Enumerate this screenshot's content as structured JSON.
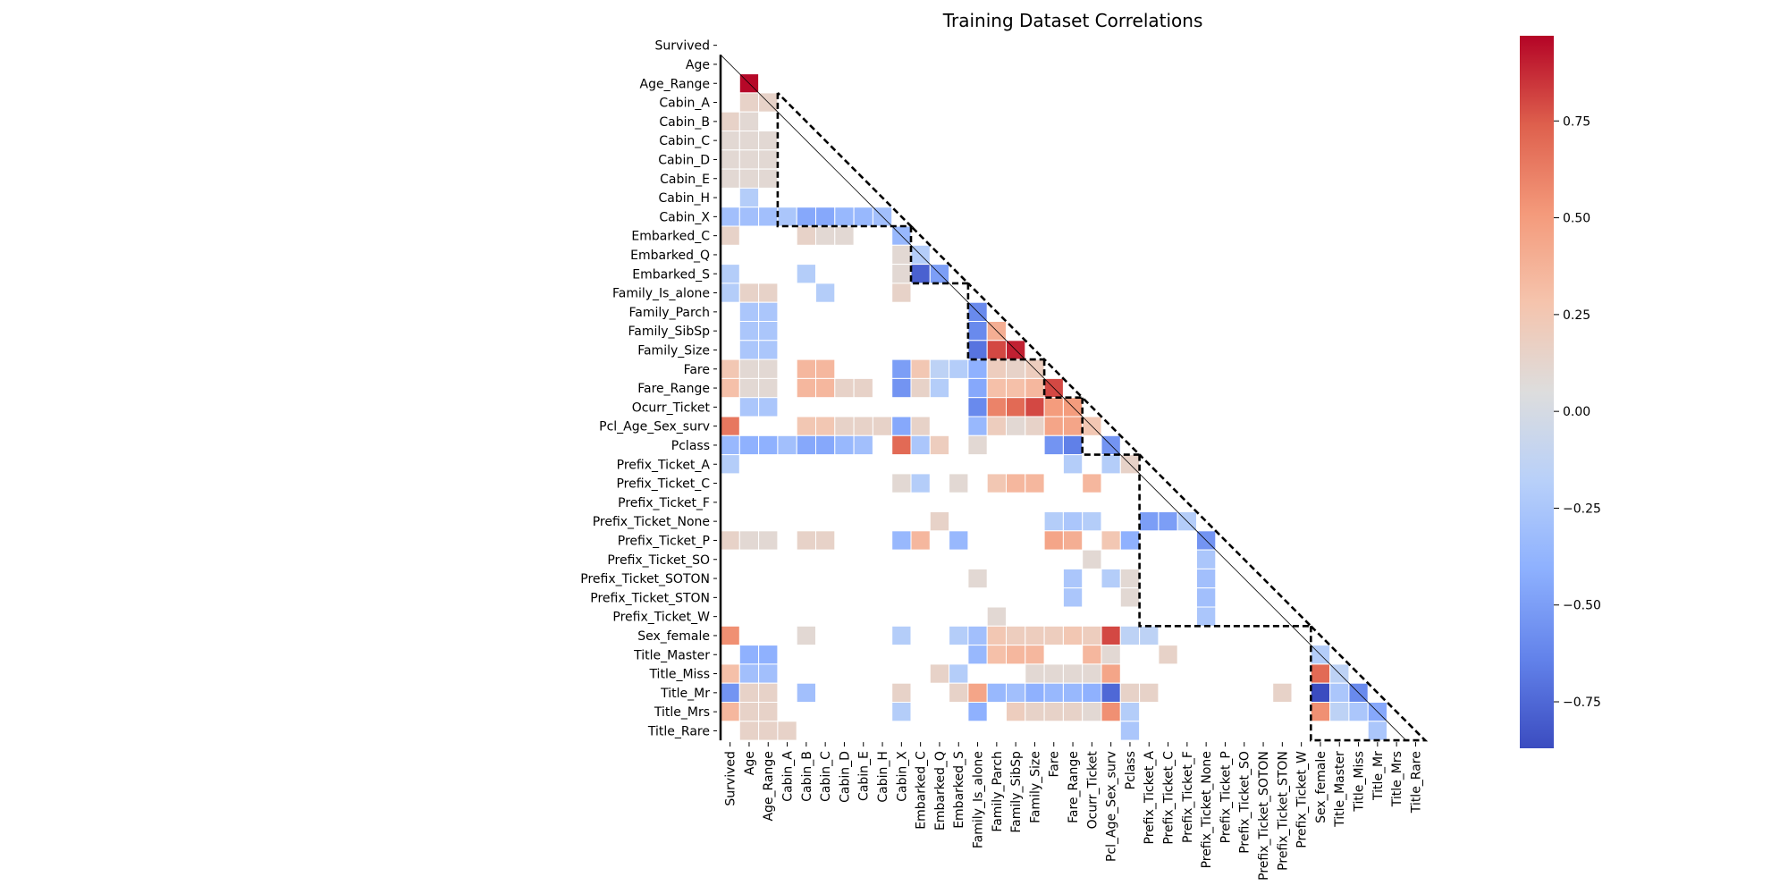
{
  "chart_data": {
    "type": "heatmap",
    "title": "Training Dataset Correlations",
    "xlabel": "",
    "ylabel": "",
    "mask": "upper triangle incl. diagonal; cells with |r| below threshold blank",
    "variables": [
      "Survived",
      "Age",
      "Age_Range",
      "Cabin_A",
      "Cabin_B",
      "Cabin_C",
      "Cabin_D",
      "Cabin_E",
      "Cabin_H",
      "Cabin_X",
      "Embarked_C",
      "Embarked_Q",
      "Embarked_S",
      "Family_Is_alone",
      "Family_Parch",
      "Family_SibSp",
      "Family_Size",
      "Fare",
      "Fare_Range",
      "Ocurr_Ticket",
      "Pcl_Age_Sex_surv",
      "Pclass",
      "Prefix_Ticket_A",
      "Prefix_Ticket_C",
      "Prefix_Ticket_F",
      "Prefix_Ticket_None",
      "Prefix_Ticket_P",
      "Prefix_Ticket_SO",
      "Prefix_Ticket_SOTON",
      "Prefix_Ticket_STON",
      "Prefix_Ticket_W",
      "Sex_female",
      "Title_Master",
      "Title_Miss",
      "Title_Mr",
      "Title_Mrs",
      "Title_Rare"
    ],
    "cells": [
      [
        2,
        1,
        0.96
      ],
      [
        3,
        1,
        0.15
      ],
      [
        3,
        2,
        0.15
      ],
      [
        4,
        0,
        0.15
      ],
      [
        4,
        1,
        0.1
      ],
      [
        5,
        0,
        0.1
      ],
      [
        5,
        1,
        0.1
      ],
      [
        5,
        2,
        0.1
      ],
      [
        6,
        0,
        0.1
      ],
      [
        6,
        1,
        0.1
      ],
      [
        6,
        2,
        0.1
      ],
      [
        7,
        0,
        0.1
      ],
      [
        7,
        1,
        0.1
      ],
      [
        7,
        2,
        0.1
      ],
      [
        8,
        1,
        -0.2
      ],
      [
        9,
        0,
        -0.3
      ],
      [
        9,
        1,
        -0.3
      ],
      [
        9,
        2,
        -0.3
      ],
      [
        9,
        3,
        -0.25
      ],
      [
        9,
        4,
        -0.45
      ],
      [
        9,
        5,
        -0.45
      ],
      [
        9,
        6,
        -0.35
      ],
      [
        9,
        7,
        -0.35
      ],
      [
        9,
        8,
        -0.3
      ],
      [
        10,
        0,
        0.15
      ],
      [
        10,
        4,
        0.15
      ],
      [
        10,
        5,
        0.1
      ],
      [
        10,
        6,
        0.1
      ],
      [
        10,
        9,
        -0.35
      ],
      [
        11,
        9,
        0.1
      ],
      [
        11,
        10,
        -0.2
      ],
      [
        12,
        0,
        -0.2
      ],
      [
        12,
        4,
        -0.2
      ],
      [
        12,
        9,
        0.1
      ],
      [
        12,
        10,
        -0.78
      ],
      [
        12,
        11,
        -0.5
      ],
      [
        13,
        0,
        -0.2
      ],
      [
        13,
        1,
        0.15
      ],
      [
        13,
        2,
        0.15
      ],
      [
        13,
        5,
        -0.2
      ],
      [
        13,
        9,
        0.15
      ],
      [
        14,
        1,
        -0.25
      ],
      [
        14,
        2,
        -0.25
      ],
      [
        14,
        13,
        -0.6
      ],
      [
        15,
        1,
        -0.25
      ],
      [
        15,
        2,
        -0.25
      ],
      [
        15,
        13,
        -0.6
      ],
      [
        15,
        14,
        0.4
      ],
      [
        16,
        1,
        -0.25
      ],
      [
        16,
        2,
        -0.25
      ],
      [
        16,
        13,
        -0.7
      ],
      [
        16,
        14,
        0.8
      ],
      [
        16,
        15,
        0.9
      ],
      [
        17,
        0,
        0.25
      ],
      [
        17,
        1,
        0.1
      ],
      [
        17,
        2,
        0.1
      ],
      [
        17,
        4,
        0.35
      ],
      [
        17,
        5,
        0.35
      ],
      [
        17,
        9,
        -0.5
      ],
      [
        17,
        10,
        0.25
      ],
      [
        17,
        11,
        -0.15
      ],
      [
        17,
        12,
        -0.2
      ],
      [
        17,
        13,
        -0.4
      ],
      [
        17,
        14,
        0.2
      ],
      [
        17,
        15,
        0.15
      ],
      [
        17,
        16,
        0.2
      ],
      [
        18,
        0,
        0.3
      ],
      [
        18,
        1,
        0.1
      ],
      [
        18,
        2,
        0.1
      ],
      [
        18,
        4,
        0.35
      ],
      [
        18,
        5,
        0.35
      ],
      [
        18,
        6,
        0.15
      ],
      [
        18,
        7,
        0.15
      ],
      [
        18,
        9,
        -0.55
      ],
      [
        18,
        10,
        0.15
      ],
      [
        18,
        11,
        -0.2
      ],
      [
        18,
        13,
        -0.45
      ],
      [
        18,
        14,
        0.3
      ],
      [
        18,
        15,
        0.3
      ],
      [
        18,
        16,
        0.35
      ],
      [
        18,
        17,
        0.8
      ],
      [
        19,
        1,
        -0.25
      ],
      [
        19,
        2,
        -0.25
      ],
      [
        19,
        13,
        -0.6
      ],
      [
        19,
        14,
        0.6
      ],
      [
        19,
        15,
        0.7
      ],
      [
        19,
        16,
        0.8
      ],
      [
        19,
        17,
        0.5
      ],
      [
        19,
        18,
        0.5
      ],
      [
        20,
        0,
        0.65
      ],
      [
        20,
        4,
        0.25
      ],
      [
        20,
        5,
        0.25
      ],
      [
        20,
        6,
        0.15
      ],
      [
        20,
        7,
        0.15
      ],
      [
        20,
        8,
        0.15
      ],
      [
        20,
        9,
        -0.45
      ],
      [
        20,
        10,
        0.15
      ],
      [
        20,
        13,
        -0.35
      ],
      [
        20,
        14,
        0.2
      ],
      [
        20,
        15,
        0.1
      ],
      [
        20,
        16,
        0.15
      ],
      [
        20,
        17,
        0.45
      ],
      [
        20,
        18,
        0.45
      ],
      [
        20,
        19,
        0.25
      ],
      [
        21,
        0,
        -0.35
      ],
      [
        21,
        1,
        -0.4
      ],
      [
        21,
        2,
        -0.4
      ],
      [
        21,
        3,
        -0.3
      ],
      [
        21,
        4,
        -0.45
      ],
      [
        21,
        5,
        -0.45
      ],
      [
        21,
        6,
        -0.35
      ],
      [
        21,
        7,
        -0.3
      ],
      [
        21,
        9,
        0.7
      ],
      [
        21,
        10,
        -0.25
      ],
      [
        21,
        11,
        0.2
      ],
      [
        21,
        13,
        0.1
      ],
      [
        21,
        17,
        -0.55
      ],
      [
        21,
        18,
        -0.65
      ],
      [
        21,
        20,
        -0.55
      ],
      [
        22,
        0,
        -0.2
      ],
      [
        22,
        18,
        -0.2
      ],
      [
        22,
        20,
        -0.2
      ],
      [
        22,
        21,
        0.15
      ],
      [
        23,
        9,
        0.1
      ],
      [
        23,
        10,
        -0.2
      ],
      [
        23,
        12,
        0.1
      ],
      [
        23,
        14,
        0.25
      ],
      [
        23,
        15,
        0.35
      ],
      [
        23,
        16,
        0.35
      ],
      [
        23,
        19,
        0.35
      ],
      [
        25,
        11,
        0.15
      ],
      [
        25,
        17,
        -0.2
      ],
      [
        25,
        18,
        -0.25
      ],
      [
        25,
        19,
        -0.2
      ],
      [
        25,
        22,
        -0.5
      ],
      [
        25,
        23,
        -0.5
      ],
      [
        25,
        24,
        -0.2
      ],
      [
        26,
        0,
        0.15
      ],
      [
        26,
        1,
        0.1
      ],
      [
        26,
        2,
        0.1
      ],
      [
        26,
        4,
        0.15
      ],
      [
        26,
        5,
        0.15
      ],
      [
        26,
        9,
        -0.35
      ],
      [
        26,
        10,
        0.35
      ],
      [
        26,
        12,
        -0.35
      ],
      [
        26,
        17,
        0.45
      ],
      [
        26,
        18,
        0.4
      ],
      [
        26,
        20,
        0.25
      ],
      [
        26,
        21,
        -0.4
      ],
      [
        26,
        25,
        -0.55
      ],
      [
        27,
        19,
        0.1
      ],
      [
        27,
        25,
        -0.25
      ],
      [
        28,
        13,
        0.1
      ],
      [
        28,
        18,
        -0.25
      ],
      [
        28,
        20,
        -0.2
      ],
      [
        28,
        21,
        0.1
      ],
      [
        28,
        25,
        -0.3
      ],
      [
        29,
        18,
        -0.25
      ],
      [
        29,
        21,
        0.1
      ],
      [
        29,
        25,
        -0.3
      ],
      [
        30,
        14,
        0.1
      ],
      [
        30,
        25,
        -0.25
      ],
      [
        31,
        0,
        0.55
      ],
      [
        31,
        4,
        0.1
      ],
      [
        31,
        9,
        -0.2
      ],
      [
        31,
        12,
        -0.2
      ],
      [
        31,
        13,
        -0.3
      ],
      [
        31,
        14,
        0.25
      ],
      [
        31,
        15,
        0.2
      ],
      [
        31,
        16,
        0.2
      ],
      [
        31,
        17,
        0.2
      ],
      [
        31,
        18,
        0.25
      ],
      [
        31,
        19,
        0.2
      ],
      [
        31,
        20,
        0.8
      ],
      [
        31,
        21,
        -0.15
      ],
      [
        31,
        22,
        -0.15
      ],
      [
        32,
        1,
        -0.4
      ],
      [
        32,
        2,
        -0.4
      ],
      [
        32,
        13,
        -0.35
      ],
      [
        32,
        14,
        0.3
      ],
      [
        32,
        15,
        0.35
      ],
      [
        32,
        16,
        0.35
      ],
      [
        32,
        19,
        0.35
      ],
      [
        32,
        20,
        0.1
      ],
      [
        32,
        23,
        0.15
      ],
      [
        32,
        31,
        -0.2
      ],
      [
        33,
        0,
        0.3
      ],
      [
        33,
        1,
        -0.3
      ],
      [
        33,
        2,
        -0.3
      ],
      [
        33,
        11,
        0.15
      ],
      [
        33,
        12,
        -0.2
      ],
      [
        33,
        16,
        0.1
      ],
      [
        33,
        17,
        0.1
      ],
      [
        33,
        18,
        0.1
      ],
      [
        33,
        19,
        0.1
      ],
      [
        33,
        20,
        0.45
      ],
      [
        33,
        31,
        0.7
      ],
      [
        33,
        32,
        -0.15
      ],
      [
        34,
        0,
        -0.55
      ],
      [
        34,
        1,
        0.15
      ],
      [
        34,
        2,
        0.15
      ],
      [
        34,
        4,
        -0.3
      ],
      [
        34,
        9,
        0.15
      ],
      [
        34,
        12,
        0.15
      ],
      [
        34,
        13,
        0.45
      ],
      [
        34,
        14,
        -0.35
      ],
      [
        34,
        15,
        -0.3
      ],
      [
        34,
        16,
        -0.4
      ],
      [
        34,
        17,
        -0.35
      ],
      [
        34,
        18,
        -0.35
      ],
      [
        34,
        19,
        -0.4
      ],
      [
        34,
        20,
        -0.75
      ],
      [
        34,
        21,
        0.15
      ],
      [
        34,
        22,
        0.15
      ],
      [
        34,
        29,
        0.15
      ],
      [
        34,
        31,
        -0.87
      ],
      [
        34,
        32,
        -0.25
      ],
      [
        34,
        33,
        -0.6
      ],
      [
        35,
        0,
        0.35
      ],
      [
        35,
        1,
        0.15
      ],
      [
        35,
        2,
        0.15
      ],
      [
        35,
        9,
        -0.2
      ],
      [
        35,
        13,
        -0.4
      ],
      [
        35,
        15,
        0.2
      ],
      [
        35,
        16,
        0.15
      ],
      [
        35,
        17,
        0.15
      ],
      [
        35,
        18,
        0.15
      ],
      [
        35,
        19,
        0.1
      ],
      [
        35,
        20,
        0.55
      ],
      [
        35,
        21,
        -0.2
      ],
      [
        35,
        31,
        0.55
      ],
      [
        35,
        32,
        -0.15
      ],
      [
        35,
        33,
        -0.25
      ],
      [
        35,
        34,
        -0.45
      ],
      [
        36,
        1,
        0.15
      ],
      [
        36,
        2,
        0.15
      ],
      [
        36,
        3,
        0.15
      ],
      [
        36,
        21,
        -0.25
      ],
      [
        36,
        34,
        -0.25
      ]
    ],
    "clusters": [
      [
        3,
        9
      ],
      [
        10,
        12
      ],
      [
        13,
        16
      ],
      [
        17,
        18
      ],
      [
        19,
        21
      ],
      [
        22,
        30
      ],
      [
        31,
        36
      ]
    ],
    "colorbar": {
      "colormap": "coolwarm",
      "vmin": -0.87,
      "vmax": 0.97,
      "ticks": [
        -0.75,
        -0.5,
        -0.25,
        0.0,
        0.25,
        0.5,
        0.75
      ],
      "tick_labels": [
        "−0.75",
        "−0.50",
        "−0.25",
        "0.00",
        "0.25",
        "0.50",
        "0.75"
      ]
    }
  }
}
